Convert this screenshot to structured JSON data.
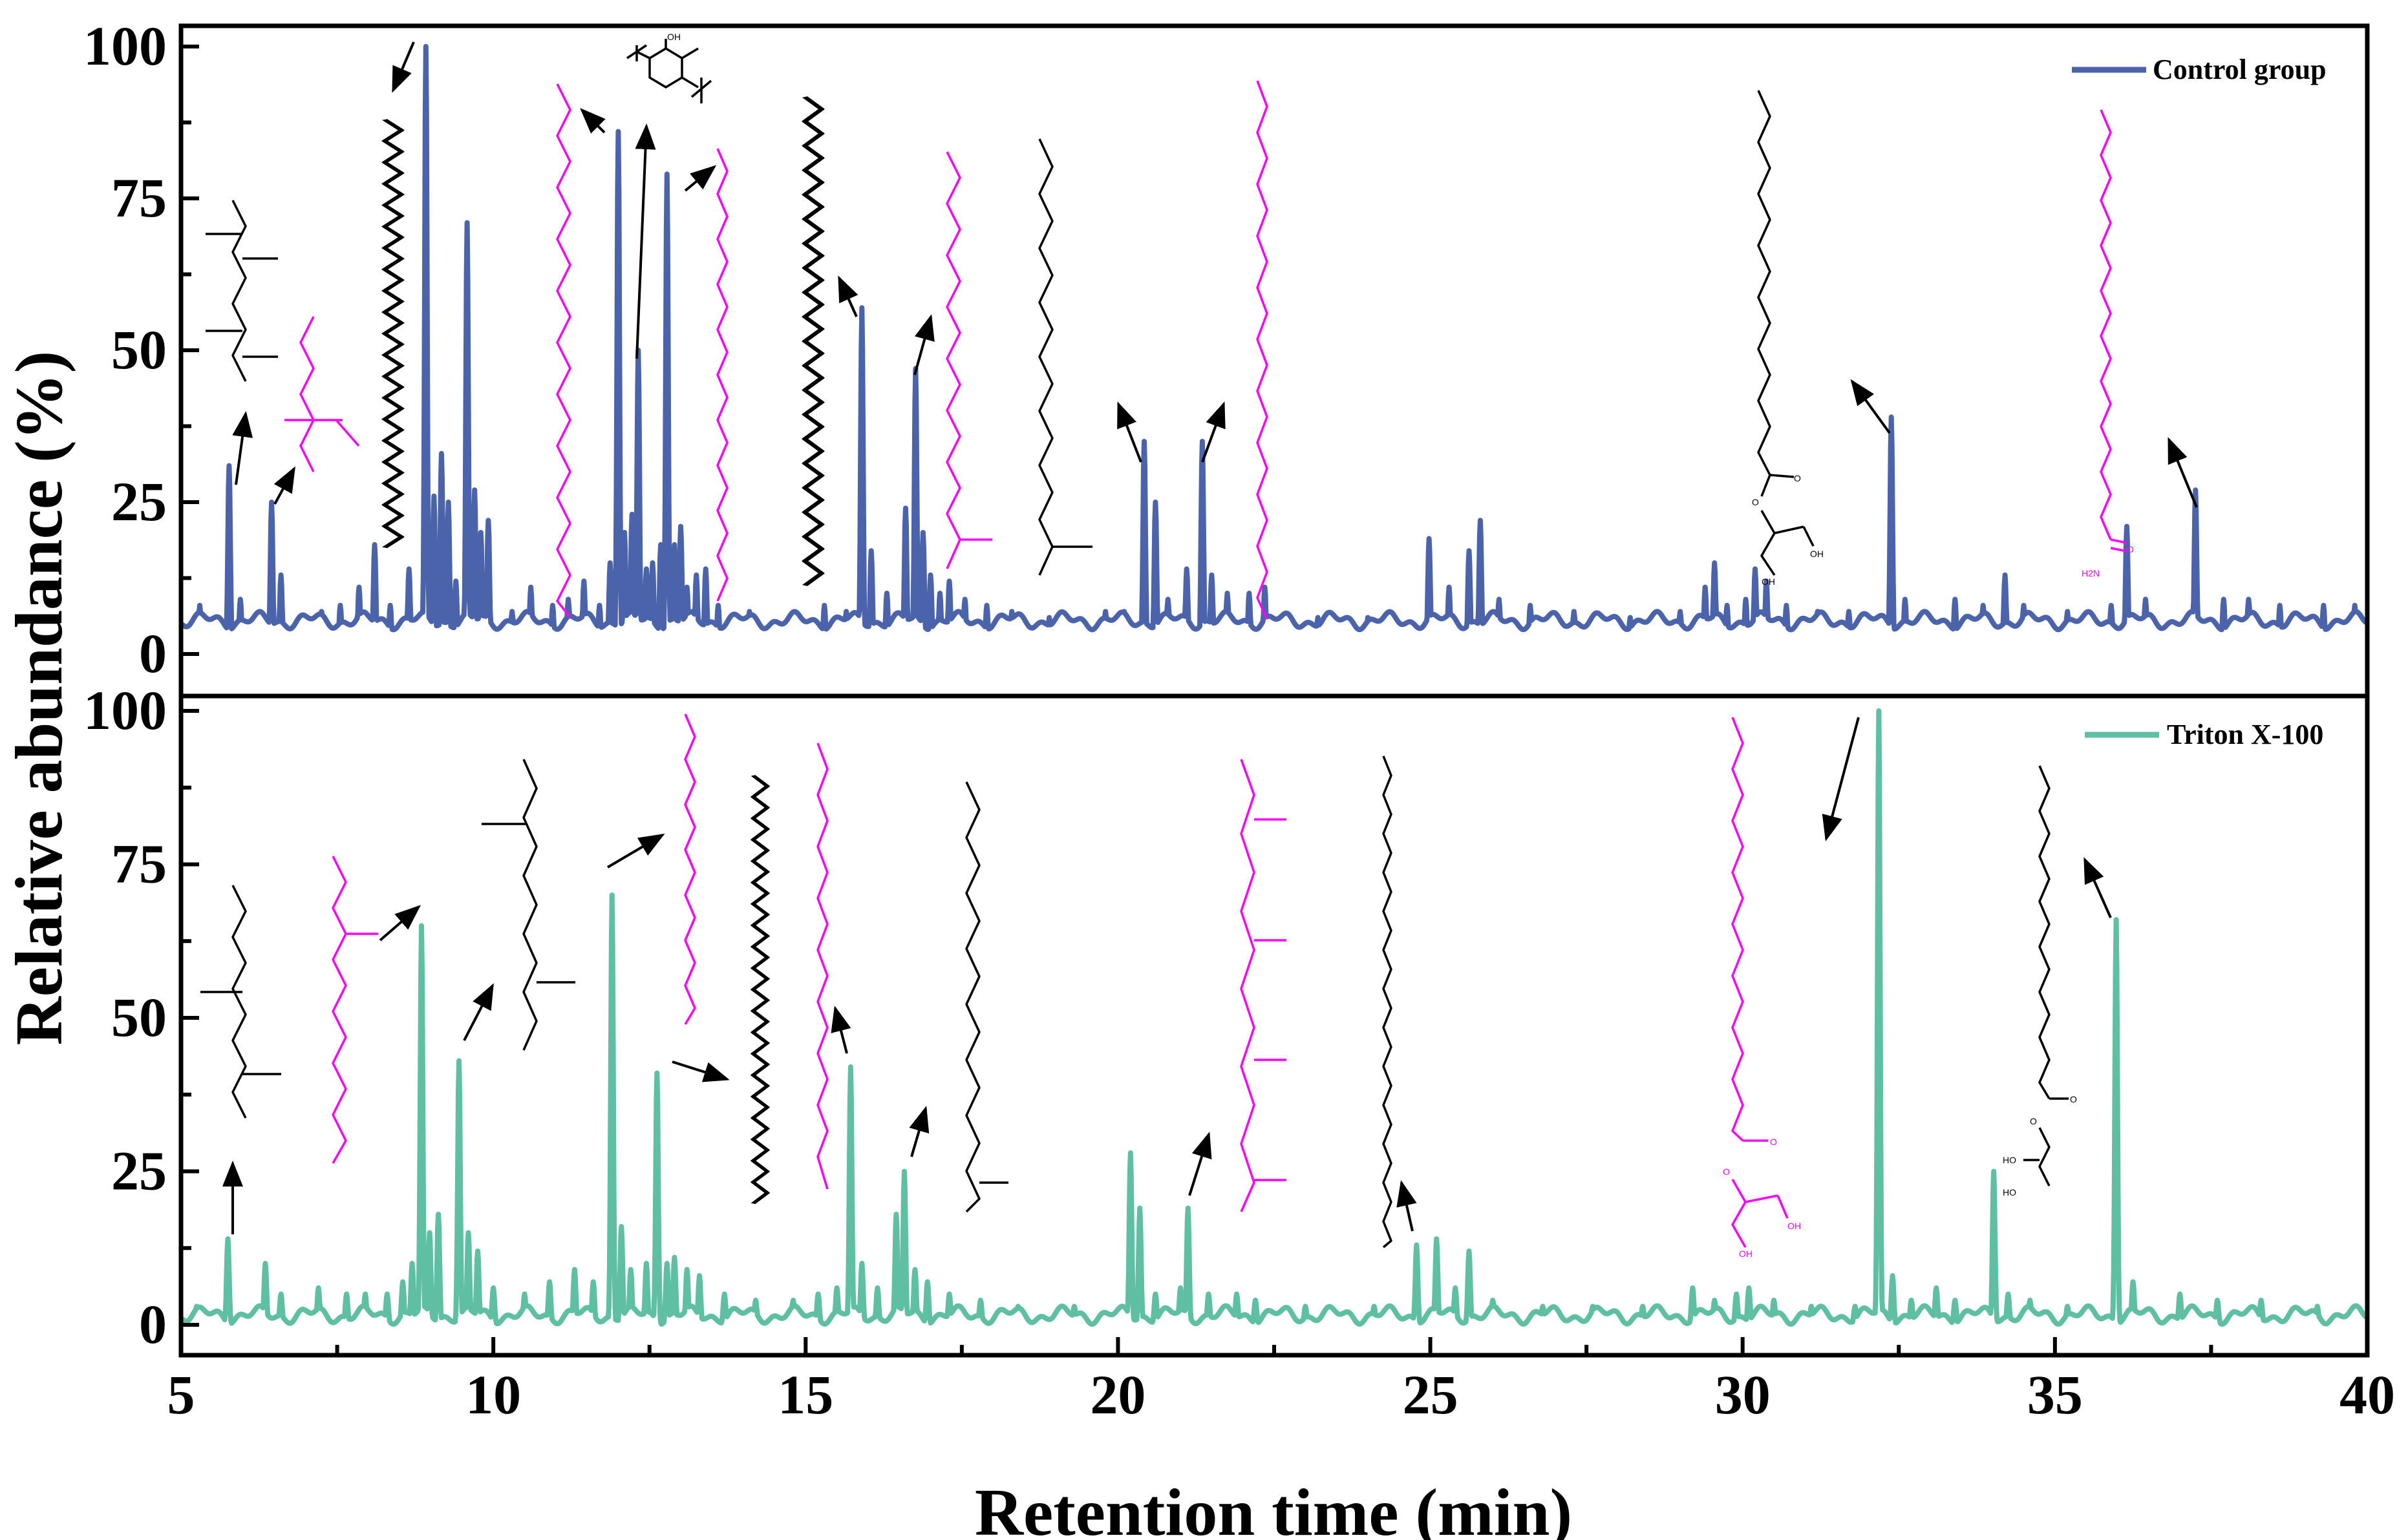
{
  "colors": {
    "control": "#4a63ab",
    "triton": "#5fbfa3",
    "magenta": "#ff00ff",
    "black": "#000000"
  },
  "chart_data": {
    "type": "line",
    "xlabel": "Retention time (min)",
    "ylabel": "Relative abundance (%)",
    "xlim": [
      5,
      40
    ],
    "ylim": [
      0,
      100
    ],
    "x_ticks": [
      "5",
      "10",
      "15",
      "20",
      "25",
      "30",
      "35",
      "40"
    ],
    "y_ticks": [
      "0",
      "25",
      "50",
      "75",
      "100"
    ],
    "panels": [
      {
        "name": "Control group",
        "legend": "Control group",
        "color": "#4a63ab",
        "baseline": 5.5,
        "peaks": [
          {
            "x": 5.3,
            "y": 8
          },
          {
            "x": 5.77,
            "y": 31
          },
          {
            "x": 5.95,
            "y": 9
          },
          {
            "x": 6.45,
            "y": 25
          },
          {
            "x": 6.6,
            "y": 13
          },
          {
            "x": 6.9,
            "y": 6
          },
          {
            "x": 7.25,
            "y": 7
          },
          {
            "x": 7.55,
            "y": 8
          },
          {
            "x": 7.85,
            "y": 11
          },
          {
            "x": 8.1,
            "y": 18
          },
          {
            "x": 8.35,
            "y": 8
          },
          {
            "x": 8.65,
            "y": 14
          },
          {
            "x": 8.92,
            "y": 100
          },
          {
            "x": 9.05,
            "y": 26
          },
          {
            "x": 9.17,
            "y": 33
          },
          {
            "x": 9.28,
            "y": 25
          },
          {
            "x": 9.4,
            "y": 12
          },
          {
            "x": 9.58,
            "y": 71
          },
          {
            "x": 9.7,
            "y": 27
          },
          {
            "x": 9.8,
            "y": 20
          },
          {
            "x": 9.92,
            "y": 22
          },
          {
            "x": 10.3,
            "y": 7
          },
          {
            "x": 10.6,
            "y": 11
          },
          {
            "x": 10.95,
            "y": 8
          },
          {
            "x": 11.2,
            "y": 9
          },
          {
            "x": 11.45,
            "y": 12
          },
          {
            "x": 11.7,
            "y": 8
          },
          {
            "x": 11.87,
            "y": 15
          },
          {
            "x": 12.0,
            "y": 86
          },
          {
            "x": 12.1,
            "y": 20
          },
          {
            "x": 12.22,
            "y": 23
          },
          {
            "x": 12.32,
            "y": 50
          },
          {
            "x": 12.45,
            "y": 14
          },
          {
            "x": 12.55,
            "y": 15
          },
          {
            "x": 12.68,
            "y": 18
          },
          {
            "x": 12.78,
            "y": 79
          },
          {
            "x": 12.9,
            "y": 18
          },
          {
            "x": 13.0,
            "y": 21
          },
          {
            "x": 13.1,
            "y": 11
          },
          {
            "x": 13.25,
            "y": 13
          },
          {
            "x": 13.4,
            "y": 14
          },
          {
            "x": 13.6,
            "y": 8
          },
          {
            "x": 14.1,
            "y": 7
          },
          {
            "x": 14.8,
            "y": 6
          },
          {
            "x": 15.3,
            "y": 8
          },
          {
            "x": 15.65,
            "y": 7
          },
          {
            "x": 15.9,
            "y": 57
          },
          {
            "x": 16.05,
            "y": 17
          },
          {
            "x": 16.3,
            "y": 10
          },
          {
            "x": 16.6,
            "y": 24
          },
          {
            "x": 16.76,
            "y": 47
          },
          {
            "x": 16.88,
            "y": 20
          },
          {
            "x": 17.0,
            "y": 13
          },
          {
            "x": 17.15,
            "y": 10
          },
          {
            "x": 17.3,
            "y": 12
          },
          {
            "x": 17.55,
            "y": 9
          },
          {
            "x": 17.9,
            "y": 8
          },
          {
            "x": 18.3,
            "y": 7
          },
          {
            "x": 18.9,
            "y": 6
          },
          {
            "x": 19.8,
            "y": 7
          },
          {
            "x": 20.1,
            "y": 7
          },
          {
            "x": 20.42,
            "y": 35
          },
          {
            "x": 20.6,
            "y": 25
          },
          {
            "x": 20.8,
            "y": 9
          },
          {
            "x": 21.1,
            "y": 14
          },
          {
            "x": 21.35,
            "y": 35
          },
          {
            "x": 21.5,
            "y": 13
          },
          {
            "x": 21.75,
            "y": 10
          },
          {
            "x": 22.1,
            "y": 10
          },
          {
            "x": 22.35,
            "y": 11
          },
          {
            "x": 23.2,
            "y": 6
          },
          {
            "x": 24.0,
            "y": 6
          },
          {
            "x": 24.98,
            "y": 19
          },
          {
            "x": 25.3,
            "y": 11
          },
          {
            "x": 25.62,
            "y": 17
          },
          {
            "x": 25.8,
            "y": 22
          },
          {
            "x": 26.1,
            "y": 9
          },
          {
            "x": 26.6,
            "y": 8
          },
          {
            "x": 27.3,
            "y": 7
          },
          {
            "x": 28.2,
            "y": 6
          },
          {
            "x": 29.0,
            "y": 7
          },
          {
            "x": 29.4,
            "y": 11
          },
          {
            "x": 29.55,
            "y": 15
          },
          {
            "x": 29.75,
            "y": 8
          },
          {
            "x": 30.05,
            "y": 9
          },
          {
            "x": 30.2,
            "y": 14
          },
          {
            "x": 30.38,
            "y": 12
          },
          {
            "x": 30.7,
            "y": 8
          },
          {
            "x": 31.2,
            "y": 7
          },
          {
            "x": 31.7,
            "y": 7
          },
          {
            "x": 32.38,
            "y": 39
          },
          {
            "x": 32.6,
            "y": 9
          },
          {
            "x": 33.4,
            "y": 9
          },
          {
            "x": 33.85,
            "y": 8
          },
          {
            "x": 34.2,
            "y": 13
          },
          {
            "x": 34.5,
            "y": 8
          },
          {
            "x": 35.2,
            "y": 7
          },
          {
            "x": 35.9,
            "y": 8
          },
          {
            "x": 36.15,
            "y": 21
          },
          {
            "x": 36.45,
            "y": 9
          },
          {
            "x": 37.25,
            "y": 27
          },
          {
            "x": 37.7,
            "y": 9
          },
          {
            "x": 38.1,
            "y": 9
          },
          {
            "x": 38.6,
            "y": 8
          },
          {
            "x": 39.3,
            "y": 8
          },
          {
            "x": 39.8,
            "y": 8
          }
        ]
      },
      {
        "name": "Triton X-100",
        "legend": "Triton X-100",
        "color": "#5fbfa3",
        "baseline": 1.6,
        "peaks": [
          {
            "x": 5.25,
            "y": 3
          },
          {
            "x": 5.75,
            "y": 14
          },
          {
            "x": 6.35,
            "y": 10
          },
          {
            "x": 6.6,
            "y": 5
          },
          {
            "x": 7.2,
            "y": 6
          },
          {
            "x": 7.65,
            "y": 5
          },
          {
            "x": 7.95,
            "y": 5
          },
          {
            "x": 8.3,
            "y": 5
          },
          {
            "x": 8.55,
            "y": 7
          },
          {
            "x": 8.7,
            "y": 10
          },
          {
            "x": 8.85,
            "y": 65
          },
          {
            "x": 8.98,
            "y": 15
          },
          {
            "x": 9.12,
            "y": 18
          },
          {
            "x": 9.45,
            "y": 43
          },
          {
            "x": 9.6,
            "y": 15
          },
          {
            "x": 9.75,
            "y": 12
          },
          {
            "x": 10.0,
            "y": 6
          },
          {
            "x": 10.5,
            "y": 5
          },
          {
            "x": 10.9,
            "y": 7
          },
          {
            "x": 11.3,
            "y": 9
          },
          {
            "x": 11.6,
            "y": 7
          },
          {
            "x": 11.9,
            "y": 70
          },
          {
            "x": 12.05,
            "y": 16
          },
          {
            "x": 12.2,
            "y": 9
          },
          {
            "x": 12.45,
            "y": 10
          },
          {
            "x": 12.62,
            "y": 41
          },
          {
            "x": 12.78,
            "y": 10
          },
          {
            "x": 12.9,
            "y": 11
          },
          {
            "x": 13.1,
            "y": 9
          },
          {
            "x": 13.3,
            "y": 8
          },
          {
            "x": 13.7,
            "y": 5
          },
          {
            "x": 14.2,
            "y": 4
          },
          {
            "x": 14.8,
            "y": 4
          },
          {
            "x": 15.2,
            "y": 5
          },
          {
            "x": 15.5,
            "y": 6
          },
          {
            "x": 15.72,
            "y": 42
          },
          {
            "x": 15.9,
            "y": 10
          },
          {
            "x": 16.15,
            "y": 6
          },
          {
            "x": 16.45,
            "y": 18
          },
          {
            "x": 16.58,
            "y": 25
          },
          {
            "x": 16.75,
            "y": 9
          },
          {
            "x": 16.95,
            "y": 7
          },
          {
            "x": 17.3,
            "y": 5
          },
          {
            "x": 17.8,
            "y": 4
          },
          {
            "x": 18.4,
            "y": 3
          },
          {
            "x": 19.3,
            "y": 3
          },
          {
            "x": 20.2,
            "y": 28
          },
          {
            "x": 20.35,
            "y": 19
          },
          {
            "x": 20.6,
            "y": 5
          },
          {
            "x": 21.0,
            "y": 6
          },
          {
            "x": 21.12,
            "y": 19
          },
          {
            "x": 21.45,
            "y": 5
          },
          {
            "x": 21.9,
            "y": 5
          },
          {
            "x": 22.2,
            "y": 4
          },
          {
            "x": 23.0,
            "y": 3
          },
          {
            "x": 24.1,
            "y": 3
          },
          {
            "x": 24.78,
            "y": 13
          },
          {
            "x": 25.1,
            "y": 14
          },
          {
            "x": 25.4,
            "y": 6
          },
          {
            "x": 25.62,
            "y": 12
          },
          {
            "x": 26.0,
            "y": 4
          },
          {
            "x": 26.8,
            "y": 3
          },
          {
            "x": 27.6,
            "y": 3
          },
          {
            "x": 28.4,
            "y": 3
          },
          {
            "x": 29.2,
            "y": 6
          },
          {
            "x": 29.55,
            "y": 4
          },
          {
            "x": 29.9,
            "y": 5
          },
          {
            "x": 30.1,
            "y": 6
          },
          {
            "x": 30.5,
            "y": 4
          },
          {
            "x": 31.1,
            "y": 3
          },
          {
            "x": 31.8,
            "y": 3
          },
          {
            "x": 32.18,
            "y": 100
          },
          {
            "x": 32.4,
            "y": 8
          },
          {
            "x": 32.7,
            "y": 4
          },
          {
            "x": 33.1,
            "y": 6
          },
          {
            "x": 33.4,
            "y": 4
          },
          {
            "x": 34.02,
            "y": 25
          },
          {
            "x": 34.25,
            "y": 5
          },
          {
            "x": 34.6,
            "y": 4
          },
          {
            "x": 35.2,
            "y": 3
          },
          {
            "x": 35.98,
            "y": 66
          },
          {
            "x": 36.25,
            "y": 7
          },
          {
            "x": 37.0,
            "y": 5
          },
          {
            "x": 37.6,
            "y": 4
          },
          {
            "x": 38.3,
            "y": 4
          },
          {
            "x": 39.2,
            "y": 3
          },
          {
            "x": 39.8,
            "y": 3
          }
        ]
      }
    ]
  }
}
